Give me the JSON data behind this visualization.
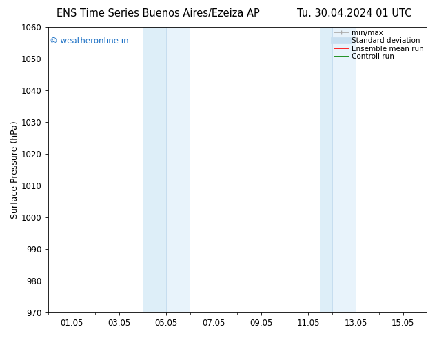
{
  "title_left": "ENS Time Series Buenos Aires/Ezeiza AP",
  "title_right": "Tu. 30.04.2024 01 UTC",
  "ylabel": "Surface Pressure (hPa)",
  "ylim": [
    970,
    1060
  ],
  "yticks": [
    970,
    980,
    990,
    1000,
    1010,
    1020,
    1030,
    1040,
    1050,
    1060
  ],
  "xlim": [
    0,
    16
  ],
  "xtick_labels": [
    "01.05",
    "03.05",
    "05.05",
    "07.05",
    "09.05",
    "11.05",
    "13.05",
    "15.05"
  ],
  "xtick_positions": [
    1,
    3,
    5,
    7,
    9,
    11,
    13,
    15
  ],
  "shaded_regions": [
    {
      "x_start": 4.0,
      "x_end": 5.0,
      "color": "#ddeef8"
    },
    {
      "x_start": 5.0,
      "x_end": 6.0,
      "color": "#e8f3fb"
    },
    {
      "x_start": 11.5,
      "x_end": 12.0,
      "color": "#ddeef8"
    },
    {
      "x_start": 12.0,
      "x_end": 13.0,
      "color": "#e8f3fb"
    }
  ],
  "background_color": "#ffffff",
  "watermark_text": "© weatheronline.in",
  "watermark_color": "#1a6fc4",
  "legend_entries": [
    {
      "label": "min/max",
      "color": "#aaaaaa",
      "lw": 1.2
    },
    {
      "label": "Standard deviation",
      "color": "#c8dff0",
      "lw": 7
    },
    {
      "label": "Ensemble mean run",
      "color": "#ff0000",
      "lw": 1.2
    },
    {
      "label": "Controll run",
      "color": "#008000",
      "lw": 1.2
    }
  ],
  "title_fontsize": 10.5,
  "tick_fontsize": 8.5,
  "ylabel_fontsize": 9,
  "watermark_fontsize": 8.5,
  "legend_fontsize": 7.5
}
